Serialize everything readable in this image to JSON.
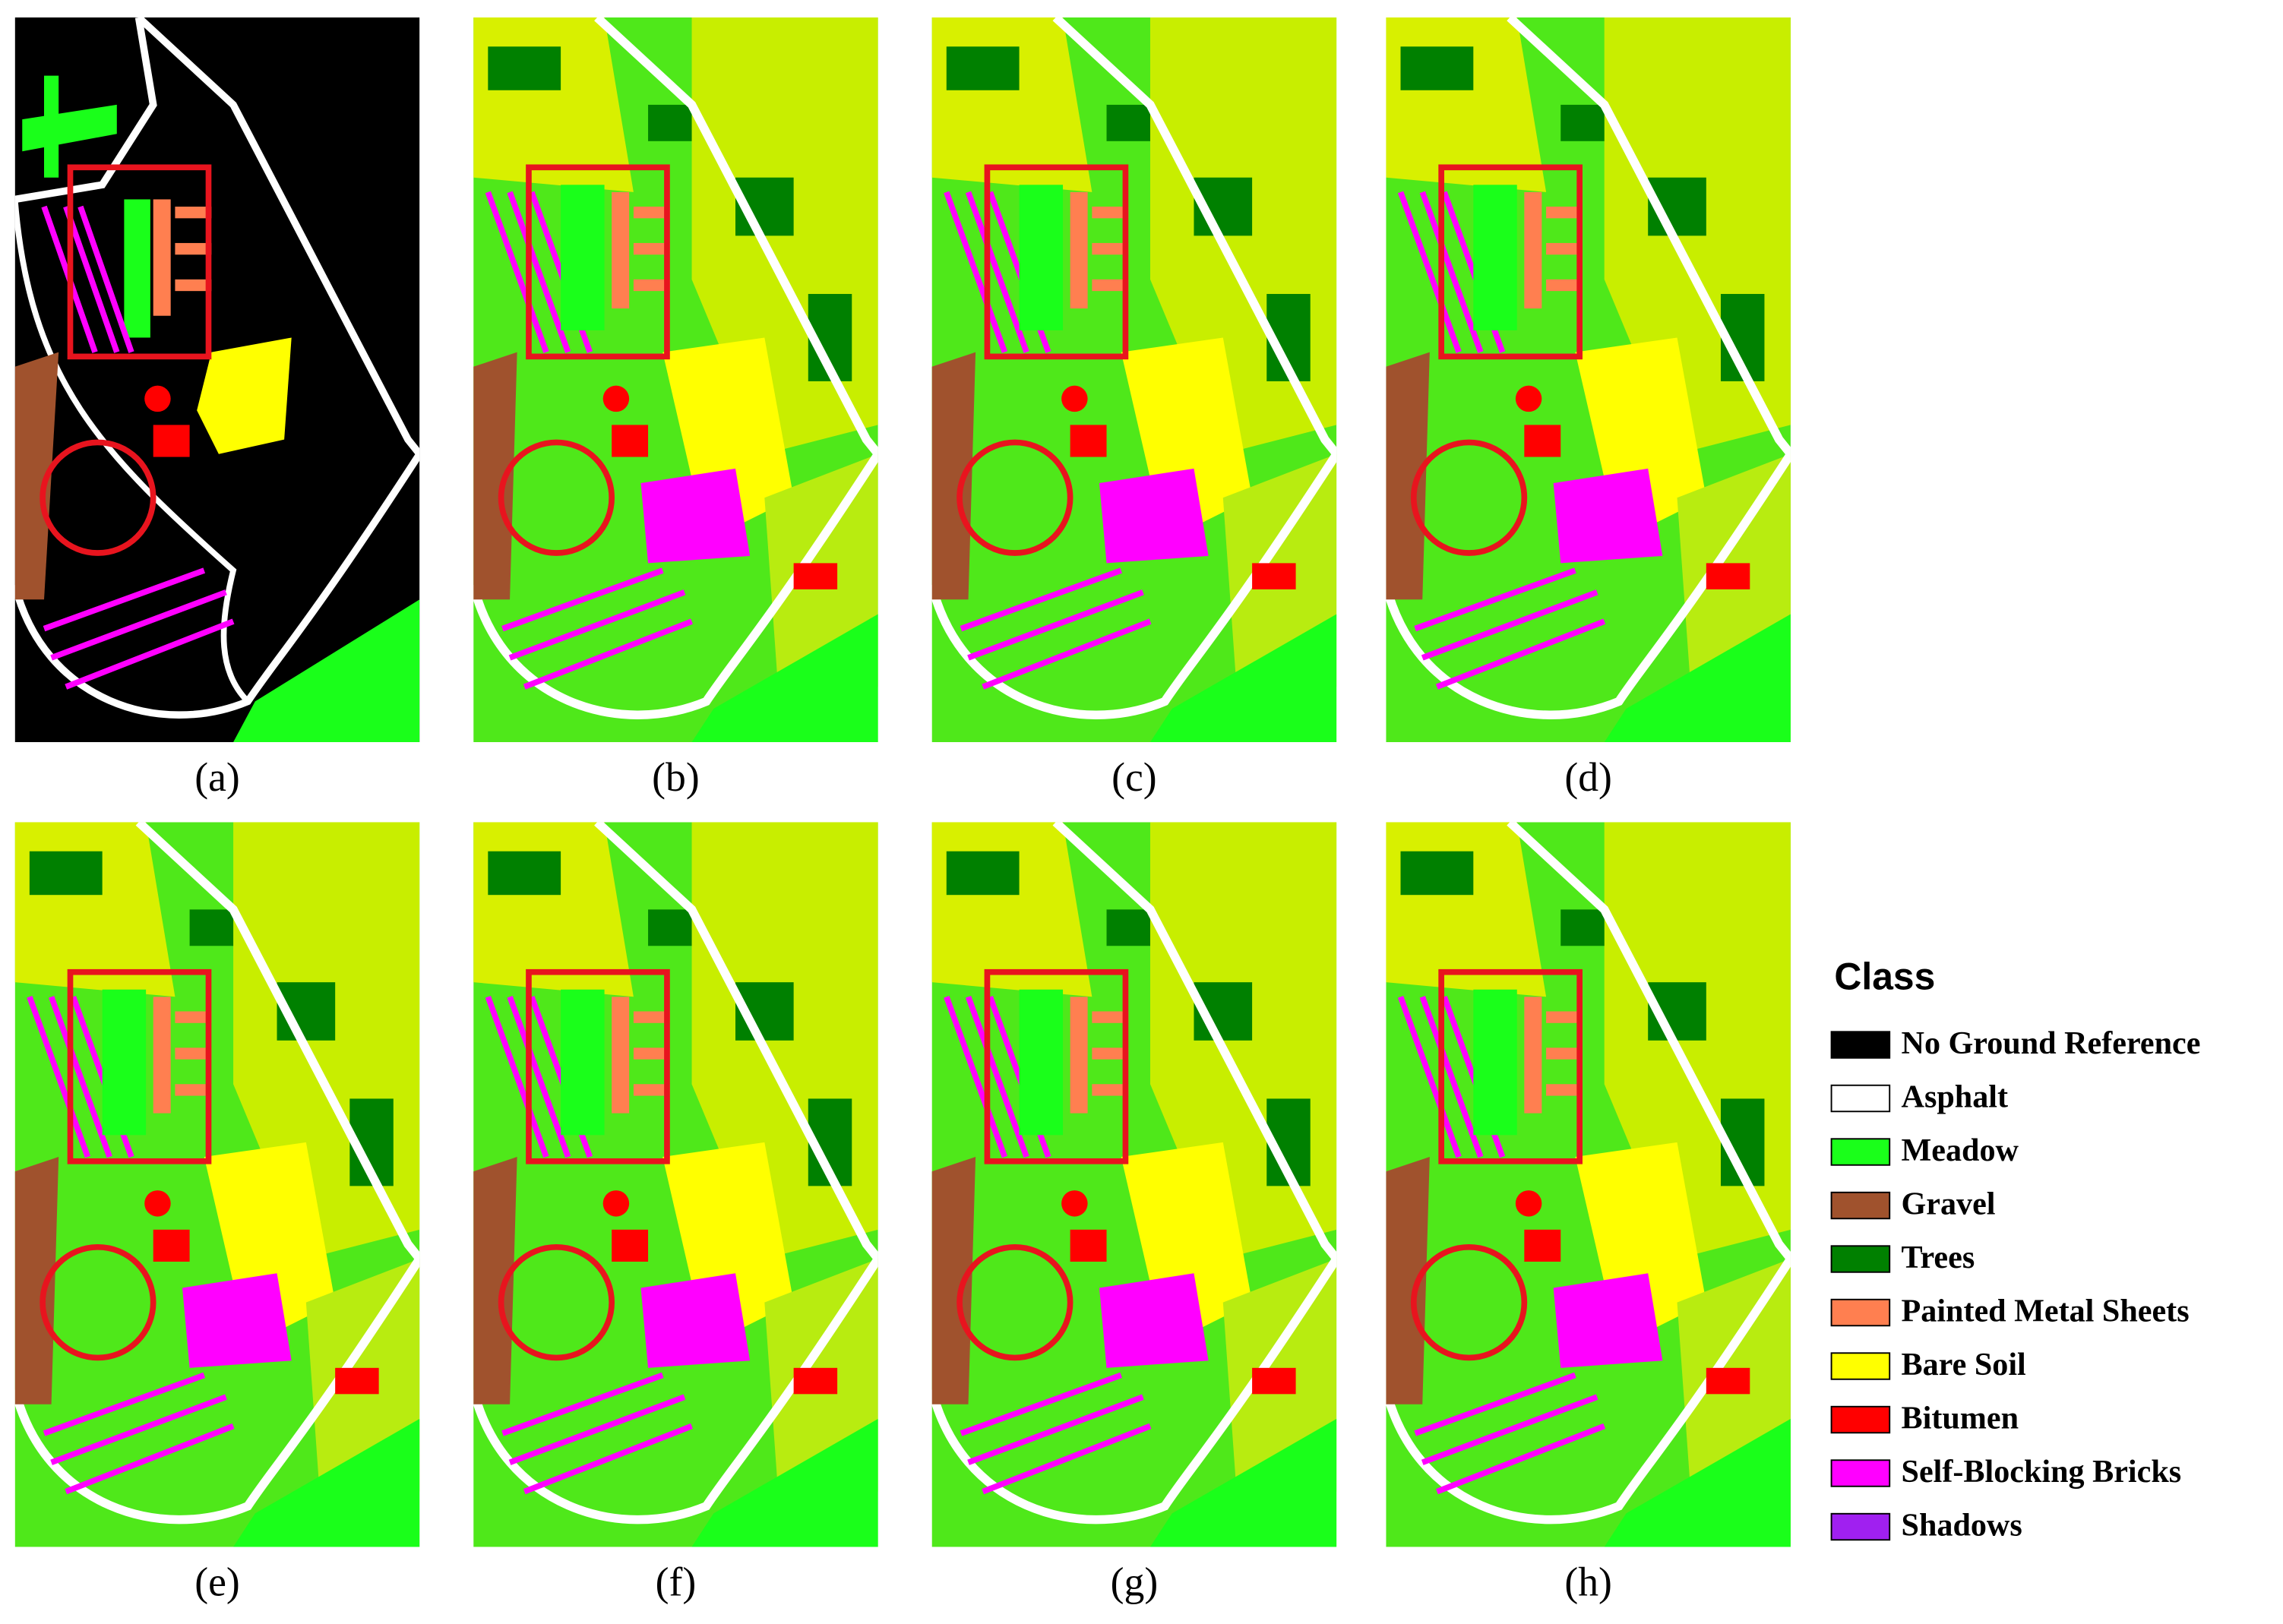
{
  "panels": [
    {
      "label": "(a)"
    },
    {
      "label": "(b)"
    },
    {
      "label": "(c)"
    },
    {
      "label": "(d)"
    },
    {
      "label": "(e)"
    },
    {
      "label": "(f)"
    },
    {
      "label": "(g)"
    },
    {
      "label": "(h)"
    }
  ],
  "legend": {
    "title": "Class",
    "items": [
      {
        "name": "No Ground Reference",
        "color": "#000000"
      },
      {
        "name": "Asphalt",
        "color": "#ffffff"
      },
      {
        "name": "Meadow",
        "color": "#1aff1a"
      },
      {
        "name": "Gravel",
        "color": "#a0522d"
      },
      {
        "name": "Trees",
        "color": "#008000"
      },
      {
        "name": "Painted Metal Sheets",
        "color": "#ff7f50"
      },
      {
        "name": "Bare Soil",
        "color": "#ffff00"
      },
      {
        "name": "Bitumen",
        "color": "#ff0000"
      },
      {
        "name": "Self-Blocking Bricks",
        "color": "#ff00ff"
      },
      {
        "name": "Shadows",
        "color": "#a020f0"
      }
    ]
  }
}
